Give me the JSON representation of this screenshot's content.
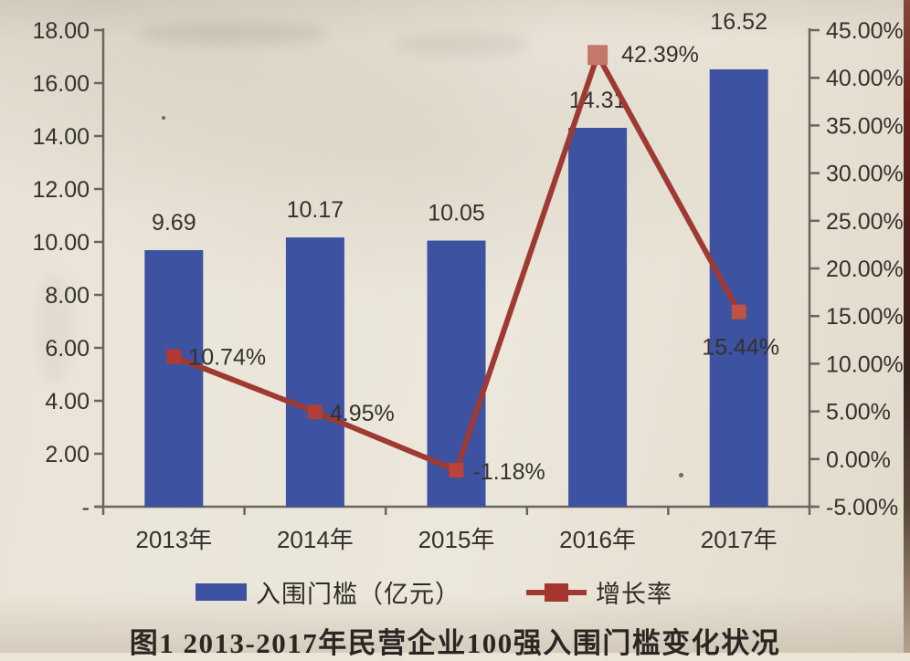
{
  "chart_data": {
    "type": "bar",
    "combo": "bar+line",
    "categories": [
      "2013年",
      "2014年",
      "2015年",
      "2016年",
      "2017年"
    ],
    "series": [
      {
        "name": "入围门槛（亿元）",
        "type": "bar",
        "axis": "left",
        "values": [
          9.69,
          10.17,
          10.05,
          14.31,
          16.52
        ],
        "point_labels": [
          "9.69",
          "10.17",
          "10.05",
          "14.31",
          "16.52"
        ],
        "color": "#3D52A0"
      },
      {
        "name": "增长率",
        "type": "line",
        "axis": "right",
        "values": [
          10.74,
          4.95,
          -1.18,
          42.39,
          15.44
        ],
        "point_labels": [
          "10.74%",
          "4.95%",
          "-1.18%",
          "42.39%",
          "15.44%"
        ],
        "color": "#9E3A33",
        "marker_colors": [
          "#B23A30",
          "#AE4038",
          "#BC4335",
          "#C4786B",
          "#BE5343"
        ]
      }
    ],
    "left_axis": {
      "min": 0,
      "max": 18,
      "step": 2,
      "tick_labels": [
        "18.00",
        "16.00",
        "14.00",
        "12.00",
        "10.00",
        "8.00",
        "6.00",
        "4.00",
        "2.00",
        "-"
      ]
    },
    "right_axis": {
      "min": -5,
      "max": 45,
      "step": 5,
      "tick_labels": [
        "45.00%",
        "40.00%",
        "35.00%",
        "30.00%",
        "25.00%",
        "20.00%",
        "15.00%",
        "10.00%",
        "5.00%",
        "0.00%",
        "-5.00%"
      ]
    },
    "legend": {
      "position": "bottom",
      "entries": [
        "入围门槛（亿元）",
        "增长率"
      ]
    },
    "title": "图1 2013-2017年民营企业100强入围门槛变化状况",
    "grid": false,
    "colors": {
      "text": "#35312c",
      "axis": "#6b6560",
      "background": "#ebe5d8"
    }
  }
}
